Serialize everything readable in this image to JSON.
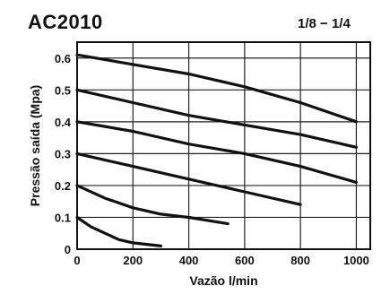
{
  "header": {
    "title": "AC2010",
    "port_size": "1/8 − 1/4"
  },
  "chart_data": {
    "type": "line",
    "title": "AC2010",
    "subtitle": "1/8 − 1/4",
    "xlabel": "Vazão l/min",
    "ylabel": "Pressão saída (Mpa)",
    "xlim": [
      0,
      1050
    ],
    "ylim": [
      0,
      0.65
    ],
    "xticks": [
      0,
      200,
      400,
      600,
      800,
      1000
    ],
    "yticks": [
      0,
      0.1,
      0.2,
      0.3,
      0.4,
      0.5,
      0.6
    ],
    "xtick_labels": [
      "0",
      "200",
      "400",
      "600",
      "800",
      "1000"
    ],
    "ytick_labels": [
      "0",
      "0.1",
      "0.2",
      "0.3",
      "0.4",
      "0.5",
      "0.6"
    ],
    "grid": true,
    "series": [
      {
        "x": [
          0,
          200,
          400,
          600,
          800,
          1000
        ],
        "y": [
          0.61,
          0.58,
          0.55,
          0.51,
          0.46,
          0.4
        ]
      },
      {
        "x": [
          0,
          200,
          400,
          600,
          800,
          1000
        ],
        "y": [
          0.5,
          0.46,
          0.42,
          0.39,
          0.36,
          0.32
        ]
      },
      {
        "x": [
          0,
          200,
          400,
          600,
          800,
          1000
        ],
        "y": [
          0.4,
          0.37,
          0.33,
          0.3,
          0.26,
          0.21
        ]
      },
      {
        "x": [
          0,
          200,
          400,
          600,
          800
        ],
        "y": [
          0.3,
          0.26,
          0.22,
          0.18,
          0.14
        ]
      },
      {
        "x": [
          0,
          100,
          200,
          300,
          400,
          540
        ],
        "y": [
          0.2,
          0.16,
          0.13,
          0.11,
          0.1,
          0.08
        ]
      },
      {
        "x": [
          0,
          50,
          100,
          150,
          200,
          300
        ],
        "y": [
          0.1,
          0.07,
          0.05,
          0.03,
          0.02,
          0.01
        ]
      }
    ]
  }
}
